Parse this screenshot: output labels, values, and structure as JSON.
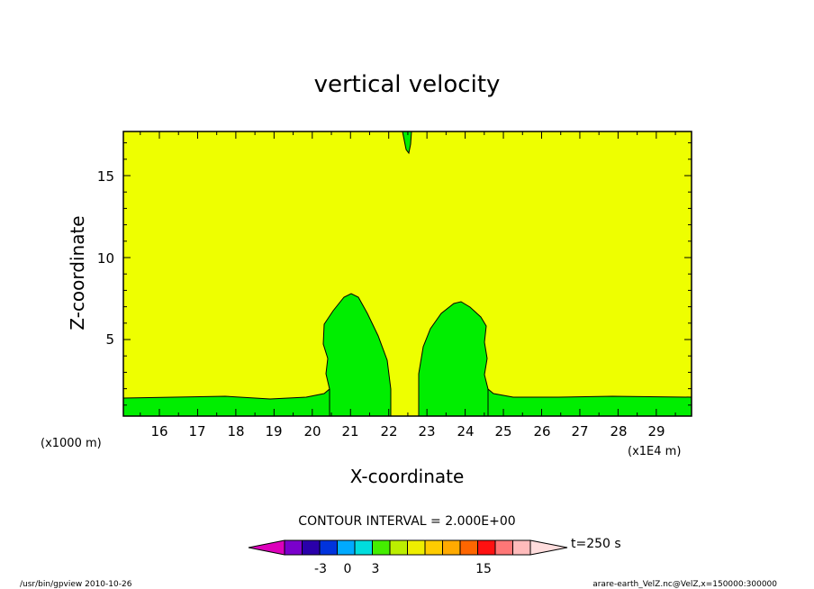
{
  "chart_data": {
    "type": "contour",
    "title": "vertical velocity",
    "xlabel": "X-coordinate",
    "ylabel": "Z-coordinate",
    "x_unit_label": "(x1000 m)",
    "x_scale_label": "(x1E4 m)",
    "xlim": [
      15.2,
      30.0
    ],
    "ylim": [
      0.4,
      17.7
    ],
    "x_ticks": [
      "16",
      "17",
      "18",
      "19",
      "20",
      "21",
      "22",
      "23",
      "24",
      "25",
      "26",
      "27",
      "28",
      "29"
    ],
    "y_ticks": [
      "5",
      "10",
      "15"
    ],
    "colors": {
      "background_field": "#eeff00",
      "updraft_field": "#00ee00",
      "contour_line": "#000000"
    },
    "contour_interval_text": "CONTOUR INTERVAL = 2.000E+00",
    "colorbar": {
      "colors": [
        "#dd00bb",
        "#7a00cc",
        "#2a00aa",
        "#0033dd",
        "#00aaff",
        "#00dddd",
        "#44ee00",
        "#bbee00",
        "#eeee00",
        "#ffcc00",
        "#ffaa00",
        "#ff6600",
        "#ff1111",
        "#ff7777",
        "#ffbbbb",
        "#ffdddd"
      ],
      "labels": [
        "-3",
        "0",
        "3",
        "15"
      ]
    },
    "time_label": "t=250 s",
    "footer_left": "/usr/bin/gpview   2010-10-26",
    "footer_right": "arare-earth_VelZ.nc@VelZ,x=150000:300000"
  }
}
